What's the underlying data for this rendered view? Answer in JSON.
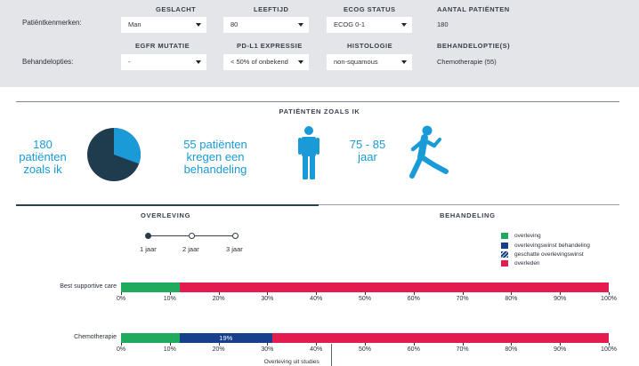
{
  "colors": {
    "accent": "#1a9ad6",
    "dark": "#2a4152",
    "overleving": "#1faa5e",
    "winst": "#163f8c",
    "overleden": "#e31b4f"
  },
  "filters": {
    "row1_label": "Patiëntkenmerken:",
    "row2_label": "Behandelopties:",
    "geslacht": {
      "label": "GESLACHT",
      "value": "Man"
    },
    "leeftijd": {
      "label": "LEEFTIJD",
      "value": "80"
    },
    "ecog": {
      "label": "ECOG STATUS",
      "value": "ECOG 0-1"
    },
    "aantal": {
      "label": "AANTAL PATIËNTEN",
      "value": "180"
    },
    "egfr": {
      "label": "EGFR MUTATIE",
      "value": "-"
    },
    "pdl1": {
      "label": "PD-L1 EXPRESSIE",
      "value": "< 50% of onbekend"
    },
    "histologie": {
      "label": "HISTOLOGIE",
      "value": "non-squamous"
    },
    "behandeloptie": {
      "label": "BEHANDELOPTIE(S)",
      "value": "Chemotherapie (55)"
    }
  },
  "summary": {
    "title": "PATIËNTEN ZOALS IK",
    "count": [
      "180",
      "patiënten",
      "zoals ik"
    ],
    "treated_fraction": 0.306,
    "treated": [
      "55 patiënten",
      "kregen een",
      "behandeling"
    ],
    "age": [
      "75 - 85",
      "jaar"
    ],
    "icons": {
      "pie": "pie-chart-icon",
      "person": "person-standing-icon",
      "walker": "person-walking-icon"
    }
  },
  "tabs": {
    "overleving": "OVERLEVING",
    "behandeling": "BEHANDELING",
    "active": "overleving"
  },
  "years": {
    "options": [
      "1 jaar",
      "2 jaar",
      "3 jaar"
    ],
    "selected": "1 jaar"
  },
  "legend": [
    {
      "label": "overleving",
      "color": "#1faa5e",
      "hatched": false
    },
    {
      "label": "overlevingswinst behandeling",
      "color": "#163f8c",
      "hatched": false
    },
    {
      "label": "geschatte overlevingswinst",
      "color": "#163f8c",
      "hatched": true
    },
    {
      "label": "overleden",
      "color": "#e31b4f",
      "hatched": false
    }
  ],
  "chart_data": {
    "type": "bar",
    "orientation": "horizontal",
    "stacked": true,
    "categories": [
      "Best supportive care",
      "Chemotherapie"
    ],
    "series": [
      {
        "name": "overleving",
        "values": [
          12,
          12
        ]
      },
      {
        "name": "overlevingswinst behandeling",
        "values": [
          0,
          19
        ]
      },
      {
        "name": "overleden",
        "values": [
          88,
          69
        ]
      }
    ],
    "segment_labels": [
      [],
      [
        "",
        "19%",
        ""
      ]
    ],
    "xlim": [
      0,
      100
    ],
    "ticks": [
      "0%",
      "10%",
      "20%",
      "30%",
      "40%",
      "50%",
      "60%",
      "70%",
      "80%",
      "90%",
      "100%"
    ],
    "reference": {
      "x": 43,
      "label": "Overleving uit studies"
    }
  }
}
